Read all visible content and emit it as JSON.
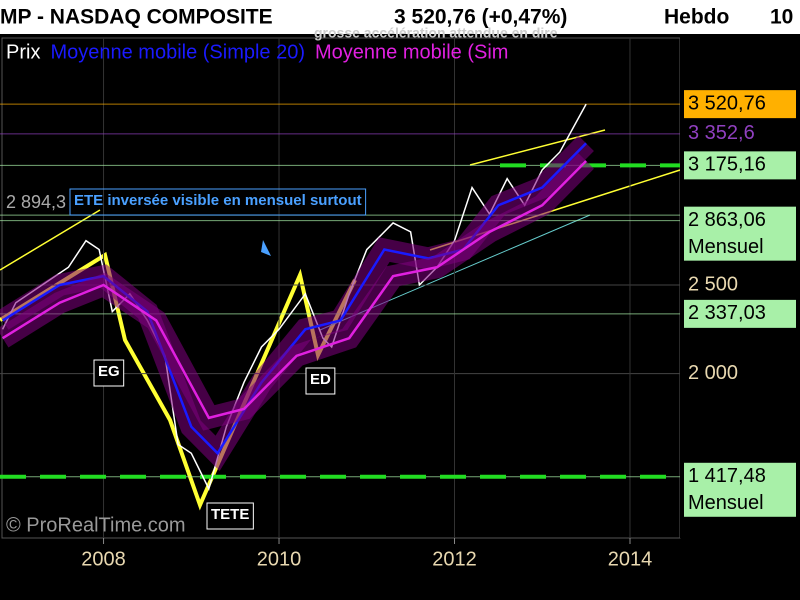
{
  "chart_data": {
    "type": "line",
    "title": "MP - NASDAQ COMPOSITE",
    "quote": "3 520,76 (+0,47%)",
    "period": "Hebdo",
    "period_cut": "10",
    "xlim": [
      2006.82,
      2014.57
    ],
    "xticks": [
      2008,
      2010,
      2012,
      2014
    ],
    "ylim": [
      1072,
      3894
    ],
    "yticks": [
      {
        "value": 2500,
        "label": "2 500"
      },
      {
        "value": 2000,
        "label": "2 000"
      }
    ],
    "series": [
      {
        "name": "Prix",
        "color": "#ffffff",
        "x": [
          2006.85,
          2007.0,
          2007.3,
          2007.6,
          2007.8,
          2007.95,
          2008.1,
          2008.3,
          2008.5,
          2008.7,
          2008.85,
          2009.0,
          2009.2,
          2009.4,
          2009.6,
          2009.8,
          2010.0,
          2010.3,
          2010.5,
          2010.6,
          2010.8,
          2011.0,
          2011.3,
          2011.5,
          2011.6,
          2011.8,
          2012.0,
          2012.2,
          2012.4,
          2012.6,
          2012.8,
          2013.0,
          2013.2,
          2013.5
        ],
        "values": [
          2250,
          2400,
          2500,
          2600,
          2750,
          2700,
          2350,
          2450,
          2300,
          2100,
          1600,
          1550,
          1350,
          1700,
          1950,
          2150,
          2250,
          2450,
          2200,
          2150,
          2450,
          2700,
          2850,
          2800,
          2500,
          2600,
          2750,
          3050,
          2900,
          3100,
          2950,
          3150,
          3250,
          3520.76
        ]
      },
      {
        "name": "Moyenne mobile (Simple 20)",
        "color": "#1a1aff",
        "x": [
          2006.85,
          2007.5,
          2008.0,
          2008.5,
          2009.0,
          2009.3,
          2009.8,
          2010.3,
          2010.7,
          2011.2,
          2011.7,
          2012.1,
          2012.5,
          2013.0,
          2013.5
        ],
        "values": [
          2300,
          2500,
          2550,
          2350,
          1700,
          1550,
          1950,
          2250,
          2300,
          2700,
          2650,
          2700,
          2950,
          3050,
          3300
        ]
      },
      {
        "name": "Moyenne mobile (Sim",
        "color": "#e020e0",
        "x": [
          2006.85,
          2007.5,
          2008.0,
          2008.6,
          2009.2,
          2009.6,
          2010.2,
          2010.8,
          2011.3,
          2011.8,
          2012.4,
          2013.0,
          2013.5
        ],
        "values": [
          2200,
          2400,
          2500,
          2300,
          1750,
          1800,
          2100,
          2200,
          2550,
          2600,
          2800,
          2950,
          3200
        ]
      }
    ],
    "levels": [
      {
        "value": 3520.76,
        "label": "3 520,76",
        "color": "#ffb000"
      },
      {
        "value": 3352.6,
        "label": "3 352,6",
        "color": "#9040c0"
      },
      {
        "value": 3175.16,
        "label": "3 175,16",
        "color": "#a8f0a8"
      },
      {
        "value": 2863.06,
        "label": "2 863,06",
        "note": "Mensuel",
        "color": "#a8f0a8"
      },
      {
        "value": 2337.03,
        "label": "2 337,03",
        "color": "#a8f0a8"
      },
      {
        "value": 1417.48,
        "label": "1 417,48",
        "note": "Mensuel",
        "color": "#a8f0a8"
      }
    ],
    "left_level": {
      "value": 2894.3,
      "label": "2 894,3"
    },
    "annotations": [
      "ETE inversée visible en mensuel surtout",
      "EG",
      "ED",
      "TETE",
      "grosse accélération attendue en dire"
    ],
    "copyright": "© ProRealTime.com",
    "grid": true
  }
}
